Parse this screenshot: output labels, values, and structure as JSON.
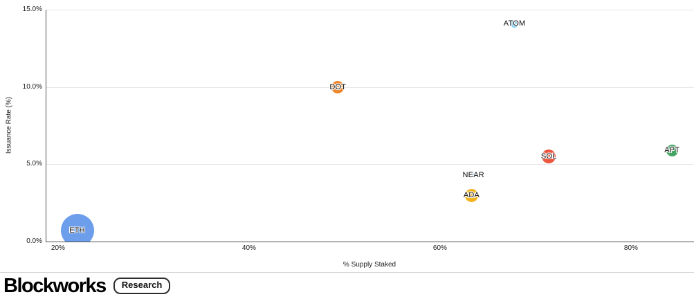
{
  "chart_data": {
    "type": "scatter",
    "title": "",
    "xlabel": "% Supply Staked",
    "ylabel": "Issuance Rate (%)",
    "xlim": [
      18.7,
      86.6
    ],
    "ylim": [
      0,
      15
    ],
    "grid": true,
    "legend": "none",
    "x_ticks": [
      {
        "value": 20,
        "label": "20%"
      },
      {
        "value": 40,
        "label": "40%"
      },
      {
        "value": 60,
        "label": "60%"
      },
      {
        "value": 80,
        "label": "80%"
      }
    ],
    "y_ticks": [
      {
        "value": 0,
        "label": "0.0%"
      },
      {
        "value": 5,
        "label": "5.0%"
      },
      {
        "value": 10,
        "label": "10.0%"
      },
      {
        "value": 15,
        "label": "15.0%"
      }
    ],
    "points": [
      {
        "name": "ETH",
        "x": 22.0,
        "y": 0.7,
        "r": 24,
        "color": "#6d9eeb"
      },
      {
        "name": "DOT",
        "x": 49.3,
        "y": 10.0,
        "r": 9,
        "color": "#f0862c"
      },
      {
        "name": "ATOM",
        "x": 67.8,
        "y": 14.1,
        "r": 5.5,
        "color": "#7ed0f0"
      },
      {
        "name": "NEAR",
        "x": 63.5,
        "y": 4.3,
        "r": 2.5,
        "color": "#b9d5ee"
      },
      {
        "name": "ADA",
        "x": 63.3,
        "y": 3.0,
        "r": 9.5,
        "color": "#f2b31c"
      },
      {
        "name": "SOL",
        "x": 71.4,
        "y": 5.5,
        "r": 10,
        "color": "#ed543d"
      },
      {
        "name": "APT",
        "x": 84.3,
        "y": 5.9,
        "r": 8.5,
        "color": "#44a464"
      }
    ]
  },
  "footer": {
    "brand": "Blockworks",
    "badge": "Research"
  }
}
